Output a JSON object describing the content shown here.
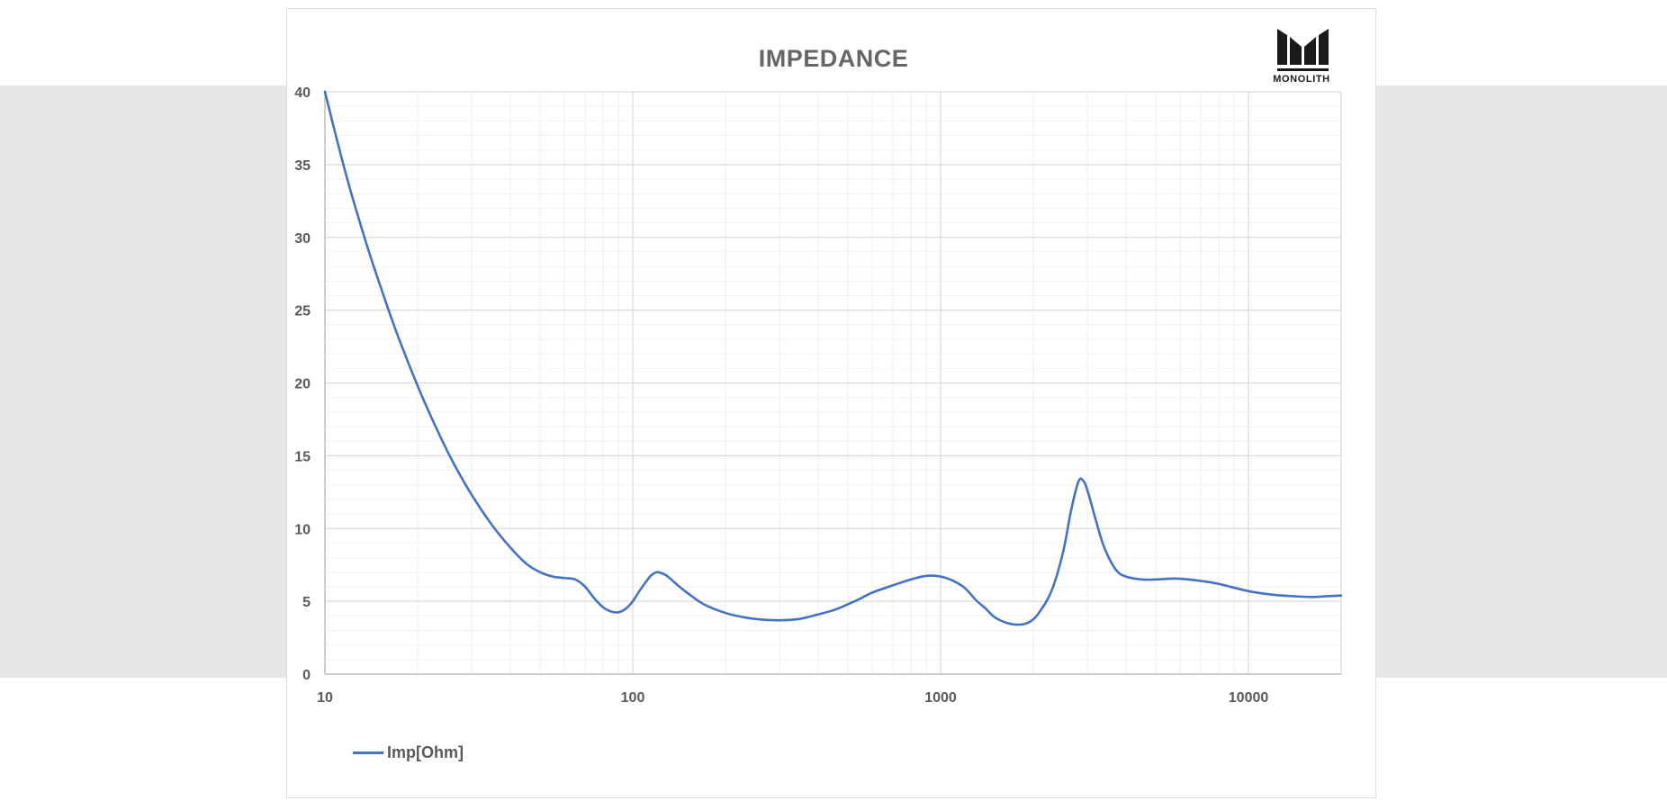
{
  "chart_data": {
    "type": "line",
    "title": "IMPEDANCE",
    "xscale": "log",
    "xlim": [
      10,
      20000
    ],
    "ylim": [
      0,
      40
    ],
    "grid": true,
    "legend_position": "bottom-left",
    "x_ticks": [
      "10",
      "100",
      "1000",
      "10000"
    ],
    "y_ticks": [
      "0",
      "5",
      "10",
      "15",
      "20",
      "25",
      "30",
      "35",
      "40"
    ],
    "series": [
      {
        "name": "Imp[Ohm]",
        "color": "#4472c4",
        "points": [
          [
            10,
            40
          ],
          [
            11,
            36.5
          ],
          [
            12,
            33.5
          ],
          [
            13,
            31
          ],
          [
            14,
            28.8
          ],
          [
            15,
            26.9
          ],
          [
            17,
            23.6
          ],
          [
            20,
            19.8
          ],
          [
            23,
            16.9
          ],
          [
            26,
            14.6
          ],
          [
            30,
            12.3
          ],
          [
            35,
            10.2
          ],
          [
            40,
            8.7
          ],
          [
            45,
            7.6
          ],
          [
            50,
            7.0
          ],
          [
            55,
            6.7
          ],
          [
            60,
            6.6
          ],
          [
            65,
            6.5
          ],
          [
            70,
            6.0
          ],
          [
            75,
            5.2
          ],
          [
            80,
            4.6
          ],
          [
            85,
            4.3
          ],
          [
            90,
            4.25
          ],
          [
            95,
            4.5
          ],
          [
            100,
            5.0
          ],
          [
            105,
            5.7
          ],
          [
            110,
            6.3
          ],
          [
            115,
            6.8
          ],
          [
            120,
            7.0
          ],
          [
            125,
            6.9
          ],
          [
            130,
            6.7
          ],
          [
            140,
            6.1
          ],
          [
            150,
            5.6
          ],
          [
            170,
            4.8
          ],
          [
            200,
            4.2
          ],
          [
            230,
            3.9
          ],
          [
            260,
            3.75
          ],
          [
            300,
            3.7
          ],
          [
            350,
            3.8
          ],
          [
            400,
            4.1
          ],
          [
            450,
            4.4
          ],
          [
            500,
            4.8
          ],
          [
            550,
            5.2
          ],
          [
            600,
            5.6
          ],
          [
            700,
            6.1
          ],
          [
            800,
            6.5
          ],
          [
            900,
            6.75
          ],
          [
            1000,
            6.7
          ],
          [
            1100,
            6.4
          ],
          [
            1200,
            5.9
          ],
          [
            1300,
            5.1
          ],
          [
            1400,
            4.5
          ],
          [
            1500,
            3.9
          ],
          [
            1650,
            3.5
          ],
          [
            1800,
            3.4
          ],
          [
            1950,
            3.6
          ],
          [
            2100,
            4.3
          ],
          [
            2300,
            5.8
          ],
          [
            2500,
            8.4
          ],
          [
            2650,
            11.2
          ],
          [
            2800,
            13.2
          ],
          [
            2900,
            13.3
          ],
          [
            3000,
            12.6
          ],
          [
            3200,
            10.5
          ],
          [
            3400,
            8.7
          ],
          [
            3700,
            7.2
          ],
          [
            4000,
            6.7
          ],
          [
            4500,
            6.5
          ],
          [
            5000,
            6.5
          ],
          [
            5500,
            6.55
          ],
          [
            6000,
            6.55
          ],
          [
            7000,
            6.4
          ],
          [
            8000,
            6.2
          ],
          [
            10000,
            5.7
          ],
          [
            12000,
            5.45
          ],
          [
            14000,
            5.35
          ],
          [
            16000,
            5.3
          ],
          [
            18000,
            5.35
          ],
          [
            20000,
            5.4
          ]
        ]
      }
    ]
  },
  "logo": {
    "text": "MONOLITH"
  }
}
